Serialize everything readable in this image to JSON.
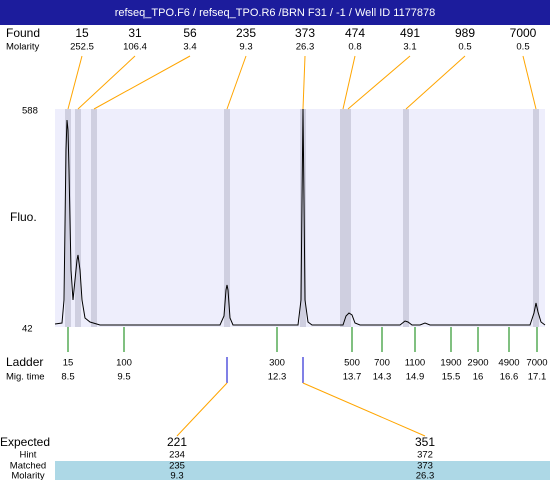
{
  "header": {
    "title": "refseq_TPO.F6 / refseq_TPO.R6 /BRN F31 / -1 / Well ID 1177878"
  },
  "found": {
    "label": "Found",
    "molarity_label": "Molarity",
    "peaks": [
      {
        "size": 15,
        "molarity": 252.5
      },
      {
        "size": 31,
        "molarity": 106.4
      },
      {
        "size": 56,
        "molarity": 3.4
      },
      {
        "size": 235,
        "molarity": 9.3
      },
      {
        "size": 373,
        "molarity": 26.3
      },
      {
        "size": 474,
        "molarity": 0.8
      },
      {
        "size": 491,
        "molarity": 3.1
      },
      {
        "size": 989,
        "molarity": 0.5
      },
      {
        "size": 7000,
        "molarity": 0.5
      }
    ]
  },
  "y_axis": {
    "label": "Fluo.",
    "max": 588,
    "min": 42
  },
  "ladder": {
    "label": "Ladder",
    "time_label": "Mig. time",
    "sizes": [
      15,
      100,
      300,
      500,
      700,
      1100,
      1900,
      2900,
      4900,
      7000
    ],
    "times": [
      8.5,
      9.5,
      12.3,
      13.7,
      14.3,
      14.9,
      15.5,
      16,
      16.6,
      17.1
    ]
  },
  "expected": {
    "label": "Expected",
    "hint_label": "Hint",
    "matched_label": "Matched",
    "molarity_label": "Molarity",
    "columns": [
      {
        "expected": 221,
        "hint": 234,
        "matched": 235,
        "molarity": 9.3
      },
      {
        "expected": 351,
        "hint": 372,
        "matched": 373,
        "molarity": 26.3
      }
    ]
  }
}
